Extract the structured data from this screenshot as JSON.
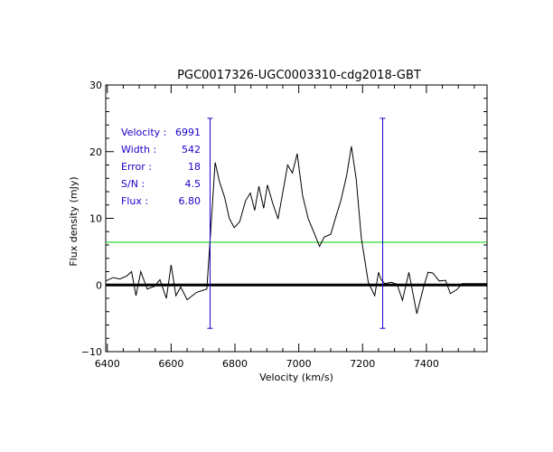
{
  "chart_data": {
    "type": "line",
    "title": "PGC0017326-UGC0003310-cdg2018-GBT",
    "xlabel": "Velocity (km/s)",
    "ylabel": "Flux density (mJy)",
    "xlim": [
      6395,
      7590
    ],
    "ylim": [
      -10,
      30
    ],
    "xticks": [
      6400,
      6600,
      6800,
      7000,
      7200,
      7400
    ],
    "xtick_labels": [
      "6400",
      "6600",
      "6800",
      "7000",
      "7200",
      "7400"
    ],
    "yticks": [
      -10,
      0,
      10,
      20,
      30
    ],
    "ytick_labels": [
      "−10",
      "0",
      "10",
      "20",
      "30"
    ],
    "series": [
      {
        "name": "spectrum",
        "color": "#000000",
        "x": [
          6395,
          6418,
          6440,
          6462,
          6476,
          6490,
          6505,
          6525,
          6548,
          6565,
          6585,
          6600,
          6615,
          6630,
          6650,
          6680,
          6700,
          6712,
          6722,
          6738,
          6752,
          6768,
          6782,
          6798,
          6815,
          6833,
          6848,
          6862,
          6875,
          6890,
          6902,
          6918,
          6935,
          6950,
          6965,
          6980,
          6995,
          7012,
          7030,
          7050,
          7065,
          7080,
          7100,
          7118,
          7132,
          7150,
          7165,
          7180,
          7196,
          7218,
          7238,
          7250,
          7258,
          7270,
          7290,
          7308,
          7325,
          7345,
          7370,
          7390,
          7405,
          7420,
          7440,
          7460,
          7475,
          7495,
          7512,
          7530,
          7548,
          7565,
          7580,
          7590
        ],
        "y": [
          0.6,
          1.1,
          0.9,
          1.4,
          2.0,
          -1.6,
          2.0,
          -0.6,
          -0.2,
          0.8,
          -2.0,
          3.0,
          -1.6,
          -0.3,
          -2.2,
          -1.1,
          -0.8,
          -0.6,
          6.7,
          18.4,
          15.4,
          13.1,
          10.0,
          8.6,
          9.5,
          12.6,
          13.8,
          11.2,
          14.8,
          11.5,
          15.0,
          12.3,
          9.9,
          13.9,
          18.0,
          16.8,
          19.7,
          13.4,
          9.9,
          7.6,
          5.8,
          7.2,
          7.6,
          10.5,
          12.7,
          16.4,
          20.8,
          15.9,
          7.0,
          0.4,
          -1.6,
          1.9,
          0.8,
          0.2,
          0.4,
          0.1,
          -2.3,
          1.9,
          -4.3,
          -0.5,
          1.9,
          1.8,
          0.6,
          0.7,
          -1.3,
          -0.7,
          0.2,
          0.2,
          0.2,
          0.2,
          0.2,
          0.2
        ]
      }
    ],
    "reference_lines": {
      "zero_level": 0,
      "half_peak_level": 6.4,
      "half_peak_color": "#00cc00",
      "zero_color": "#000000"
    },
    "markers": {
      "color": "#1a00c8",
      "x": [
        6722,
        7263
      ],
      "y_top": 25,
      "y_bottom": -6.5
    },
    "measurements": [
      {
        "label": "Velocity :",
        "value": "6991"
      },
      {
        "label": "Width  :",
        "value": "542"
      },
      {
        "label": "Error  :",
        "value": "18"
      },
      {
        "label": "S/N   :",
        "value": "4.5"
      },
      {
        "label": "Flux  :",
        "value": "6.80"
      }
    ]
  }
}
